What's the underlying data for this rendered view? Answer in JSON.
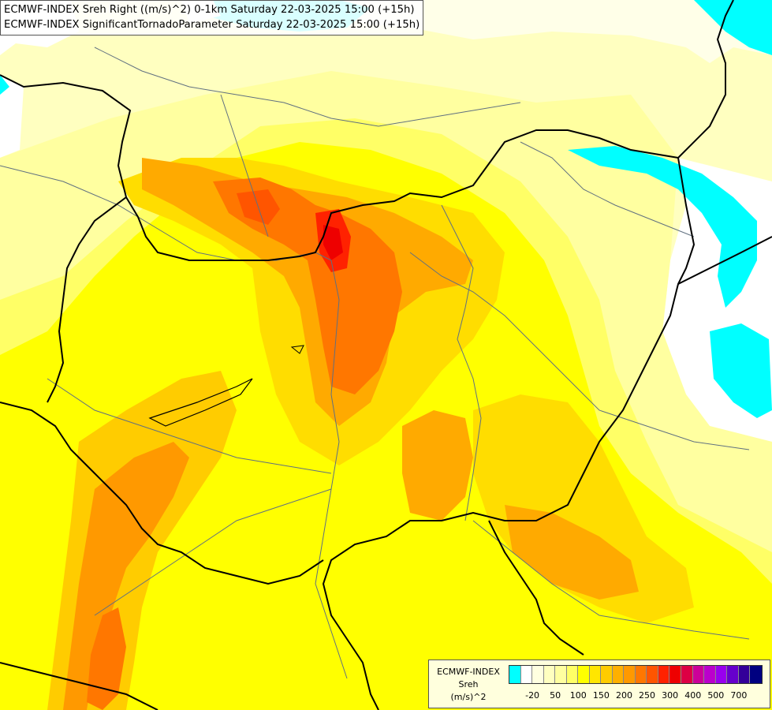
{
  "header": {
    "line1": "ECMWF-INDEX Sreh Right ((m/s)^2) 0-1km Saturday 22-03-2025 15:00 (+15h)",
    "line2": "ECMWF-INDEX SignificantTornadoParameter Saturday 22-03-2025 15:00 (+15h)"
  },
  "legend": {
    "source": "ECMWF-INDEX",
    "variable": "Sreh",
    "unit": "(m/s)^2",
    "colors": [
      "#00ffff",
      "#ffffff",
      "#ffffe0",
      "#ffffc0",
      "#ffffa0",
      "#ffff66",
      "#ffff00",
      "#ffe600",
      "#ffcc00",
      "#ffb000",
      "#ff9900",
      "#ff7700",
      "#ff5500",
      "#ff2200",
      "#ee0000",
      "#dd0044",
      "#cc0099",
      "#bb00cc",
      "#9900ee",
      "#6600cc",
      "#330099",
      "#000080"
    ],
    "ticks": [
      "-20",
      "50",
      "100",
      "150",
      "200",
      "250",
      "300",
      "400",
      "500",
      "700"
    ]
  },
  "colors": {
    "water": "#00ffff",
    "low": "#ffffc0",
    "yellow": "#ffff00",
    "gold": "#ffcc00",
    "orange": "#ff9900",
    "red_orange": "#ff6600",
    "red": "#ff2200",
    "borders": "#000000",
    "rivers": "#607080"
  }
}
